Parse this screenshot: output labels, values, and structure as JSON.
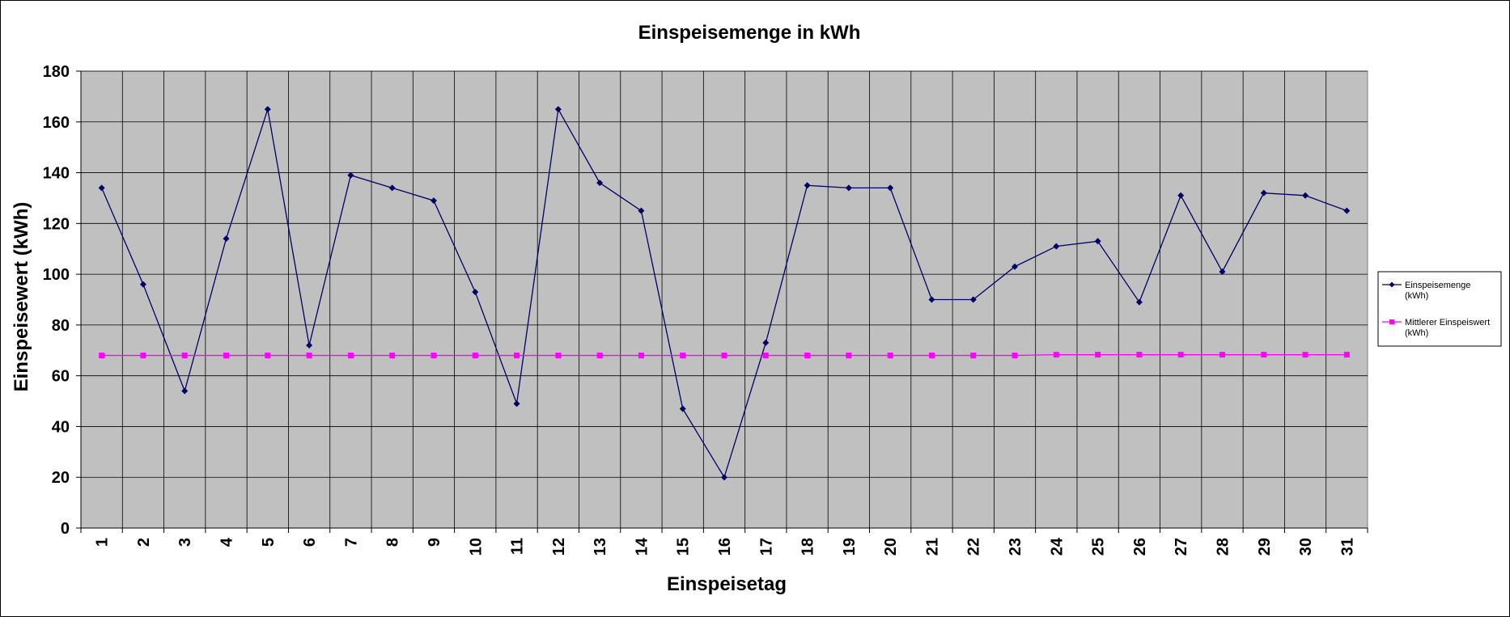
{
  "chart_data": {
    "type": "line",
    "title": "Einspeisemenge in kWh",
    "xlabel": "Einspeisetag",
    "ylabel": "Einspeisewert  (kWh)",
    "ylim": [
      0,
      180
    ],
    "yticks": [
      "0",
      "20",
      "40",
      "60",
      "80",
      "100",
      "120",
      "140",
      "160",
      "180"
    ],
    "categories": [
      "1",
      "2",
      "3",
      "4",
      "5",
      "6",
      "7",
      "8",
      "9",
      "10",
      "11",
      "12",
      "13",
      "14",
      "15",
      "16",
      "17",
      "18",
      "19",
      "20",
      "21",
      "22",
      "23",
      "24",
      "25",
      "26",
      "27",
      "28",
      "29",
      "30",
      "31"
    ],
    "grid": true,
    "legend_position": "right",
    "series": [
      {
        "name": "Einspeisemenge (kWh)",
        "legend_lines": [
          "Einspeisemenge",
          "(kWh)"
        ],
        "color": "#000066",
        "marker": "diamond",
        "values": [
          134,
          96,
          54,
          114,
          165,
          72,
          139,
          134,
          129,
          93,
          49,
          165,
          136,
          125,
          47,
          20,
          73,
          135,
          134,
          134,
          90,
          90,
          103,
          111,
          113,
          89,
          131,
          101,
          132,
          131,
          125
        ]
      },
      {
        "name": "Mittlerer Einspeiswert (kWh)",
        "legend_lines": [
          "Mittlerer Einspeiswert",
          "(kWh)"
        ],
        "color": "#ff00ff",
        "marker": "square",
        "values": [
          68,
          68,
          68,
          68,
          68,
          68,
          68,
          68,
          68,
          68,
          68,
          68,
          68,
          68,
          68,
          68,
          68,
          68,
          68,
          68,
          68,
          68,
          68,
          68.3,
          68.3,
          68.3,
          68.3,
          68.3,
          68.3,
          68.3,
          68.3
        ]
      }
    ]
  }
}
